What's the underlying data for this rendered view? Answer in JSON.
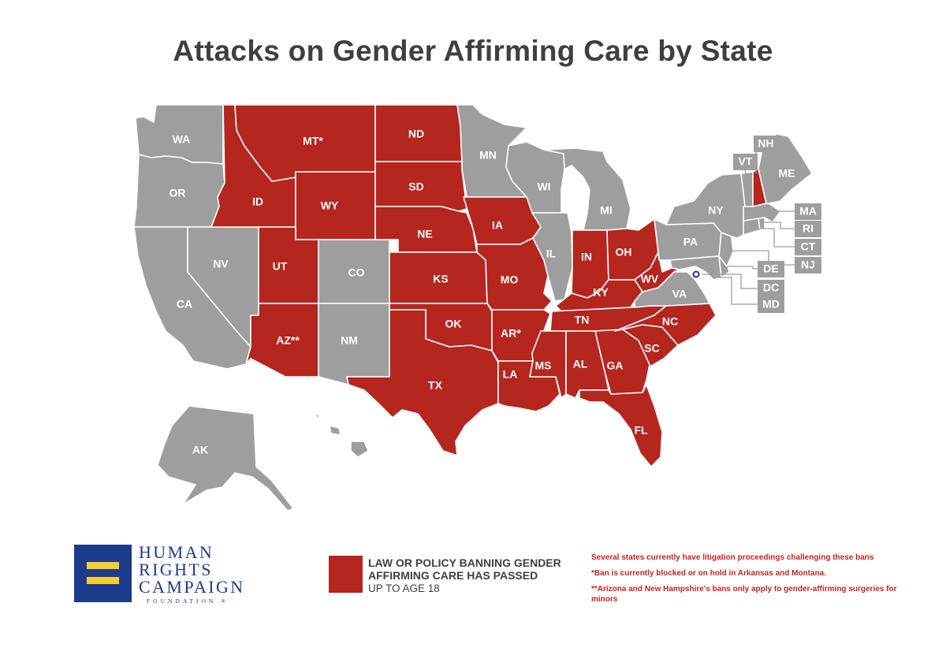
{
  "title": "Attacks on Gender Affirming Care by State",
  "colors": {
    "ban": "#b5261e",
    "no_ban": "#9e9e9e",
    "accent_text": "#c0271f",
    "logo_blue": "#1c3b8c",
    "logo_gold": "#f5cf30"
  },
  "states": {
    "WA": {
      "label": "WA",
      "status": "none"
    },
    "OR": {
      "label": "OR",
      "status": "none"
    },
    "CA": {
      "label": "CA",
      "status": "none"
    },
    "NV": {
      "label": "NV",
      "status": "none"
    },
    "ID": {
      "label": "ID",
      "status": "ban"
    },
    "MT": {
      "label": "MT*",
      "status": "ban"
    },
    "WY": {
      "label": "WY",
      "status": "ban"
    },
    "UT": {
      "label": "UT",
      "status": "ban"
    },
    "AZ": {
      "label": "AZ**",
      "status": "ban"
    },
    "CO": {
      "label": "CO",
      "status": "none"
    },
    "NM": {
      "label": "NM",
      "status": "none"
    },
    "ND": {
      "label": "ND",
      "status": "ban"
    },
    "SD": {
      "label": "SD",
      "status": "ban"
    },
    "NE": {
      "label": "NE",
      "status": "ban"
    },
    "KS": {
      "label": "KS",
      "status": "ban"
    },
    "OK": {
      "label": "OK",
      "status": "ban"
    },
    "TX": {
      "label": "TX",
      "status": "ban"
    },
    "MN": {
      "label": "MN",
      "status": "none"
    },
    "IA": {
      "label": "IA",
      "status": "ban"
    },
    "MO": {
      "label": "MO",
      "status": "ban"
    },
    "AR": {
      "label": "AR*",
      "status": "ban"
    },
    "LA": {
      "label": "LA",
      "status": "ban"
    },
    "WI": {
      "label": "WI",
      "status": "none"
    },
    "IL": {
      "label": "IL",
      "status": "none"
    },
    "MI": {
      "label": "MI",
      "status": "none"
    },
    "IN": {
      "label": "IN",
      "status": "ban"
    },
    "OH": {
      "label": "OH",
      "status": "ban"
    },
    "KY": {
      "label": "KY",
      "status": "ban"
    },
    "TN": {
      "label": "TN",
      "status": "ban"
    },
    "MS": {
      "label": "MS",
      "status": "ban"
    },
    "AL": {
      "label": "AL",
      "status": "ban"
    },
    "GA": {
      "label": "GA",
      "status": "ban"
    },
    "FL": {
      "label": "FL",
      "status": "ban"
    },
    "SC": {
      "label": "SC",
      "status": "ban"
    },
    "NC": {
      "label": "NC",
      "status": "ban"
    },
    "VA": {
      "label": "VA",
      "status": "none"
    },
    "WV": {
      "label": "WV",
      "status": "ban"
    },
    "PA": {
      "label": "PA",
      "status": "none"
    },
    "NY": {
      "label": "NY",
      "status": "none"
    },
    "VT": {
      "label": "VT",
      "status": "none"
    },
    "NH": {
      "label": "NH",
      "status": "ban"
    },
    "ME": {
      "label": "ME",
      "status": "none"
    },
    "MA": {
      "label": "MA",
      "status": "none"
    },
    "RI": {
      "label": "RI",
      "status": "none"
    },
    "CT": {
      "label": "CT",
      "status": "none"
    },
    "NJ": {
      "label": "NJ",
      "status": "none"
    },
    "DE": {
      "label": "DE",
      "status": "none"
    },
    "DC": {
      "label": "DC",
      "status": "none"
    },
    "MD": {
      "label": "MD",
      "status": "none"
    },
    "AK": {
      "label": "AK",
      "status": "none"
    },
    "HI": {
      "label": "",
      "status": "none"
    }
  },
  "legend": {
    "main": "LAW OR POLICY BANNING GENDER AFFIRMING CARE HAS PASSED",
    "sub": "UP TO AGE 18"
  },
  "notes": [
    "Several states currently have litigation proceedings challenging these bans",
    "*Ban is currently blocked or on hold in Arkansas and Montana.",
    "**Arizona and New Hampshire's bans only apply to gender-affirming surgeries for minors"
  ],
  "logo": {
    "line1": "HUMAN",
    "line2": "RIGHTS",
    "line3": "CAMPAIGN",
    "line4": "FOUNDATION",
    "registered": "®"
  }
}
